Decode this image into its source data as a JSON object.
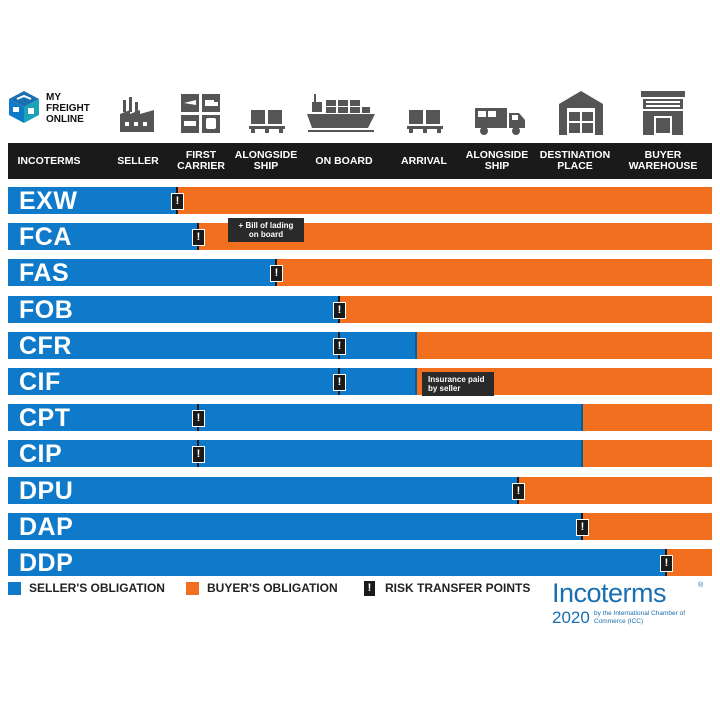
{
  "brand": {
    "logo_lines": [
      "MY",
      "FREIGHT",
      "ONLINE"
    ],
    "logo_icon": "isometric-cube-logo"
  },
  "header": {
    "columns": [
      {
        "label": "INCOTERMS",
        "icon": ""
      },
      {
        "label": "SELLER",
        "icon": "factory-icon"
      },
      {
        "label": "FIRST CARRIER",
        "icon": "transport-modes-icon"
      },
      {
        "label": "ALONGSIDE SHIP",
        "icon": "pallet-boxes-icon"
      },
      {
        "label": "ON BOARD",
        "icon": "container-ship-icon"
      },
      {
        "label": "ARRIVAL",
        "icon": "pallet-boxes-icon"
      },
      {
        "label": "ALONGSIDE SHIP",
        "icon": "truck-icon"
      },
      {
        "label": "DESTINATION PLACE",
        "icon": "warehouse-icon"
      },
      {
        "label": "BUYER WAREHOUSE",
        "icon": "storefront-icon"
      }
    ]
  },
  "colors": {
    "seller": "#0f7ac9",
    "buyer": "#f26f1f",
    "risk": "#1a1a1a",
    "header_bg": "#1a1a1a",
    "brand_blue": "#1a6fb0"
  },
  "terms": [
    {
      "code": "EXW",
      "seller_fraction": 0.24,
      "risk_fraction": 0.24,
      "note": ""
    },
    {
      "code": "FCA",
      "seller_fraction": 0.27,
      "risk_fraction": 0.27,
      "note": "+ Bill of lading on board"
    },
    {
      "code": "FAS",
      "seller_fraction": 0.38,
      "risk_fraction": 0.38,
      "note": ""
    },
    {
      "code": "FOB",
      "seller_fraction": 0.47,
      "risk_fraction": 0.47,
      "note": ""
    },
    {
      "code": "CFR",
      "seller_fraction": 0.58,
      "risk_fraction": 0.47,
      "note": ""
    },
    {
      "code": "CIF",
      "seller_fraction": 0.58,
      "risk_fraction": 0.47,
      "note": "Insurance paid by seller"
    },
    {
      "code": "CPT",
      "seller_fraction": 0.815,
      "risk_fraction": 0.27,
      "note": ""
    },
    {
      "code": "CIP",
      "seller_fraction": 0.815,
      "risk_fraction": 0.27,
      "note": ""
    },
    {
      "code": "DPU",
      "seller_fraction": 0.725,
      "risk_fraction": 0.725,
      "note": ""
    },
    {
      "code": "DAP",
      "seller_fraction": 0.815,
      "risk_fraction": 0.815,
      "note": ""
    },
    {
      "code": "DDP",
      "seller_fraction": 0.935,
      "risk_fraction": 0.935,
      "note": ""
    }
  ],
  "legend": {
    "seller": "SELLER'S OBLIGATION",
    "buyer": "BUYER'S OBLIGATION",
    "risk": "RISK TRANSFER POINTS",
    "risk_symbol": "!"
  },
  "incoterms_logo": {
    "word": "Incoterms",
    "reg": "®",
    "year": "2020",
    "subtitle": "by the International Chamber of Commerce (ICC)"
  }
}
